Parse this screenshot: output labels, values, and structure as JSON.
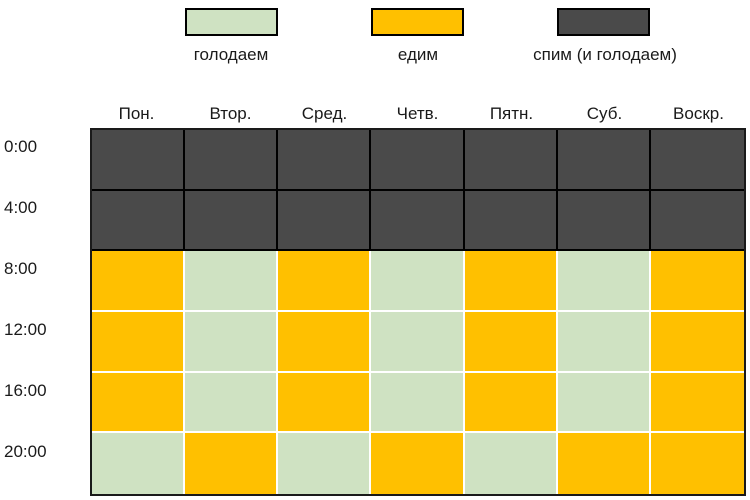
{
  "legend": [
    {
      "key": "fast",
      "label": "голодаем",
      "color": "#cfe2c2"
    },
    {
      "key": "eat",
      "label": "едим",
      "color": "#ffc000"
    },
    {
      "key": "sleep",
      "label": "спим (и голодаем)",
      "color": "#4a4a4a"
    }
  ],
  "days": [
    "Пон.",
    "Втор.",
    "Сред.",
    "Четв.",
    "Пятн.",
    "Суб.",
    "Воскр."
  ],
  "times": [
    "0:00",
    "4:00",
    "8:00",
    "12:00",
    "16:00",
    "20:00"
  ],
  "schedule": [
    [
      "sleep",
      "sleep",
      "sleep",
      "sleep",
      "sleep",
      "sleep",
      "sleep"
    ],
    [
      "sleep",
      "sleep",
      "sleep",
      "sleep",
      "sleep",
      "sleep",
      "sleep"
    ],
    [
      "eat",
      "fast",
      "eat",
      "fast",
      "eat",
      "fast",
      "eat"
    ],
    [
      "eat",
      "fast",
      "eat",
      "fast",
      "eat",
      "fast",
      "eat"
    ],
    [
      "eat",
      "fast",
      "eat",
      "fast",
      "eat",
      "fast",
      "eat"
    ],
    [
      "fast",
      "eat",
      "fast",
      "eat",
      "fast",
      "eat",
      "eat"
    ]
  ]
}
